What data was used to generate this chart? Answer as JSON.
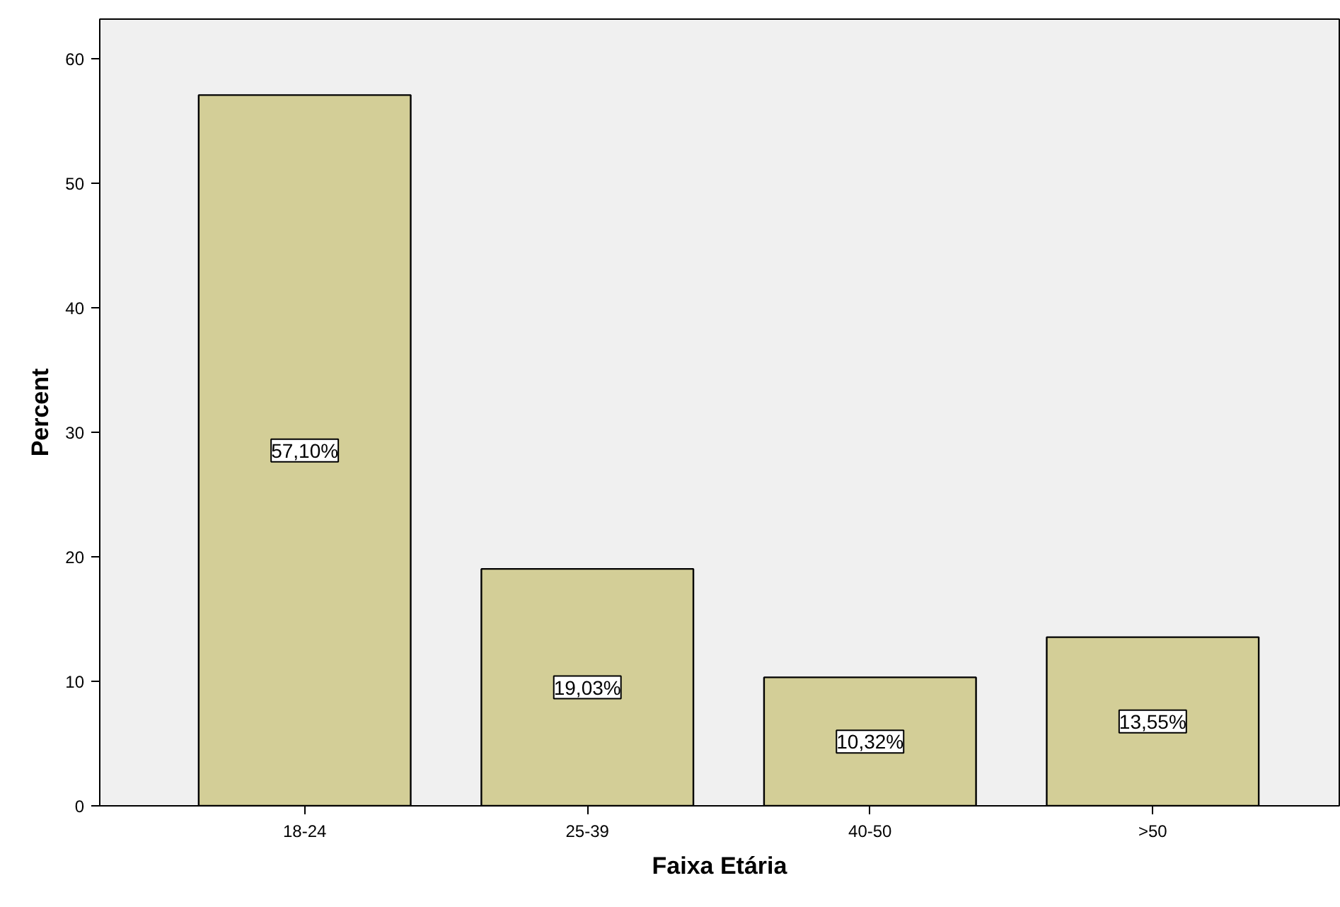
{
  "chart_data": {
    "type": "bar",
    "xlabel": "Faixa Etária",
    "ylabel": "Percent",
    "categories": [
      "18-24",
      "25-39",
      "40-50",
      ">50"
    ],
    "values": [
      57.1,
      19.03,
      10.32,
      13.55
    ],
    "value_labels": [
      "57,10%",
      "19,03%",
      "10,32%",
      "13,55%"
    ],
    "color": "#d3ce97",
    "ylim": [
      0,
      63.2
    ],
    "yticks": [
      0,
      10,
      20,
      30,
      40,
      50,
      60
    ],
    "grid": false
  }
}
